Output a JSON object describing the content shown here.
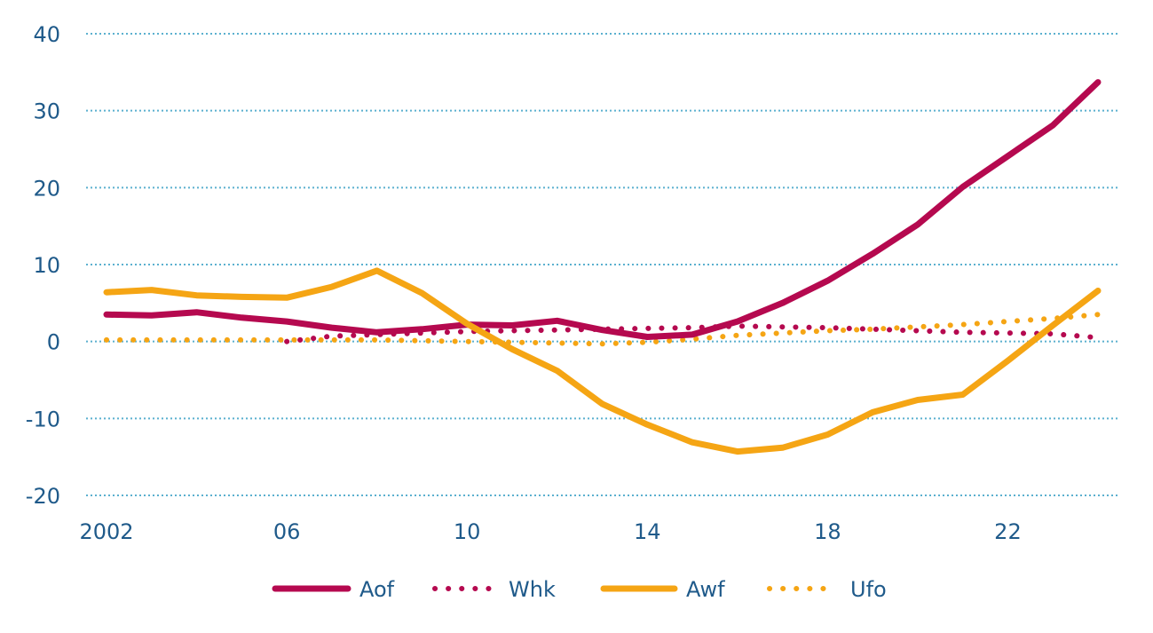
{
  "chart_data": {
    "type": "line",
    "title": "",
    "xlabel": "",
    "ylabel": "",
    "xlim": [
      2002,
      2024
    ],
    "ylim": [
      -20,
      40
    ],
    "grid": true,
    "legend_position": "bottom",
    "y_ticks": [
      {
        "value": 40,
        "label": "40"
      },
      {
        "value": 30,
        "label": "30"
      },
      {
        "value": 20,
        "label": "20"
      },
      {
        "value": 10,
        "label": "10"
      },
      {
        "value": 0,
        "label": "0"
      },
      {
        "value": -10,
        "label": "-10"
      },
      {
        "value": -20,
        "label": "-20"
      }
    ],
    "x_ticks": [
      {
        "value": 2002,
        "label": "2002"
      },
      {
        "value": 2006,
        "label": "06"
      },
      {
        "value": 2010,
        "label": "10"
      },
      {
        "value": 2014,
        "label": "14"
      },
      {
        "value": 2018,
        "label": "18"
      },
      {
        "value": 2022,
        "label": "22"
      }
    ],
    "series": [
      {
        "name": "Aof",
        "color": "#b5094f",
        "style": "solid",
        "x": [
          2002,
          2003,
          2004,
          2005,
          2006,
          2007,
          2008,
          2009,
          2010,
          2011,
          2012,
          2013,
          2014,
          2015,
          2016,
          2017,
          2018,
          2019,
          2020,
          2021,
          2022,
          2023,
          2024
        ],
        "values": [
          3.5,
          3.4,
          3.8,
          3.1,
          2.6,
          1.8,
          1.2,
          1.6,
          2.2,
          2.1,
          2.7,
          1.5,
          0.6,
          0.9,
          2.6,
          5.0,
          7.9,
          11.4,
          15.2,
          20.1,
          24.1,
          28.1,
          33.7
        ]
      },
      {
        "name": "Whk",
        "color": "#b5094f",
        "style": "dotted",
        "x": [
          2006,
          2007,
          2008,
          2009,
          2010,
          2011,
          2012,
          2013,
          2014,
          2015,
          2016,
          2017,
          2018,
          2019,
          2020,
          2021,
          2022,
          2023,
          2024
        ],
        "values": [
          0.0,
          0.7,
          0.9,
          1.1,
          1.3,
          1.4,
          1.5,
          1.6,
          1.7,
          1.8,
          2.0,
          1.9,
          1.8,
          1.6,
          1.4,
          1.2,
          1.1,
          1.0,
          0.5
        ]
      },
      {
        "name": "Awf",
        "color": "#f5a514",
        "style": "solid",
        "x": [
          2002,
          2003,
          2004,
          2005,
          2006,
          2007,
          2008,
          2009,
          2010,
          2011,
          2012,
          2013,
          2014,
          2015,
          2016,
          2017,
          2018,
          2019,
          2020,
          2021,
          2022,
          2023,
          2024
        ],
        "values": [
          6.4,
          6.7,
          6.0,
          5.8,
          5.7,
          7.1,
          9.2,
          6.3,
          2.3,
          -1.0,
          -3.8,
          -8.1,
          -10.8,
          -13.1,
          -14.3,
          -13.8,
          -12.1,
          -9.2,
          -7.6,
          -6.9,
          -2.5,
          2.1,
          6.6
        ]
      },
      {
        "name": "Ufo",
        "color": "#f5a514",
        "style": "dotted",
        "x": [
          2002,
          2003,
          2004,
          2005,
          2006,
          2007,
          2008,
          2009,
          2010,
          2011,
          2012,
          2013,
          2014,
          2015,
          2016,
          2017,
          2018,
          2019,
          2020,
          2021,
          2022,
          2023,
          2024
        ],
        "values": [
          0.2,
          0.2,
          0.2,
          0.2,
          0.2,
          0.2,
          0.2,
          0.1,
          0.0,
          -0.1,
          -0.2,
          -0.3,
          -0.1,
          0.3,
          0.8,
          1.1,
          1.4,
          1.6,
          1.9,
          2.2,
          2.6,
          3.0,
          3.5
        ]
      }
    ]
  }
}
